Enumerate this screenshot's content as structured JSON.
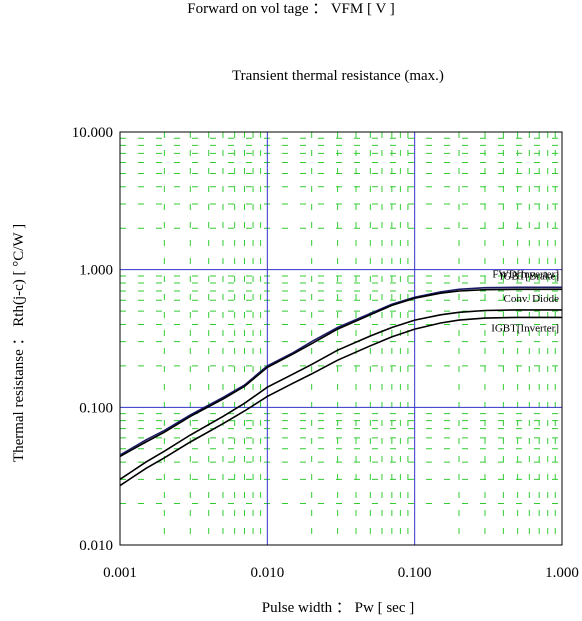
{
  "header_text": "Forward on vol tage ： VFM [ V ]",
  "chart_data": {
    "type": "line",
    "title": "Transient thermal resistance (max.)",
    "xlabel": "Pulse width ： Pw [ sec ]",
    "ylabel": "Thermal resistanse ： Rth(j-c) [ °C/W ]",
    "x_scale": "log",
    "y_scale": "log",
    "xlim": [
      0.001,
      1.0
    ],
    "ylim": [
      0.01,
      10.0
    ],
    "x_ticks": [
      0.001,
      0.01,
      0.1,
      1.0
    ],
    "x_tick_labels": [
      "0.001",
      "0.010",
      "0.100",
      "1.000"
    ],
    "y_ticks": [
      0.01,
      0.1,
      1.0,
      10.0
    ],
    "y_tick_labels": [
      "0.010",
      "0.100",
      "1.000",
      "10.000"
    ],
    "grid": true,
    "grid_color_major": "#3333cc",
    "grid_color_minor": "#33cc33",
    "series": [
      {
        "name": "IGBT[Brake]",
        "color": "#1a1a66",
        "x": [
          0.001,
          0.0015,
          0.002,
          0.003,
          0.005,
          0.007,
          0.01,
          0.015,
          0.02,
          0.03,
          0.05,
          0.07,
          0.1,
          0.15,
          0.2,
          0.3,
          0.5,
          0.7,
          1.0
        ],
        "y": [
          0.045,
          0.058,
          0.068,
          0.088,
          0.118,
          0.145,
          0.2,
          0.25,
          0.3,
          0.38,
          0.48,
          0.56,
          0.63,
          0.69,
          0.72,
          0.74,
          0.745,
          0.745,
          0.745
        ]
      },
      {
        "name": "FWD[Inverter]",
        "color": "#000000",
        "x": [
          0.001,
          0.0015,
          0.002,
          0.003,
          0.005,
          0.007,
          0.01,
          0.015,
          0.02,
          0.03,
          0.05,
          0.07,
          0.1,
          0.15,
          0.2,
          0.3,
          0.5,
          0.7,
          1.0
        ],
        "y": [
          0.044,
          0.056,
          0.066,
          0.086,
          0.115,
          0.142,
          0.195,
          0.245,
          0.29,
          0.37,
          0.47,
          0.55,
          0.62,
          0.675,
          0.7,
          0.715,
          0.72,
          0.72,
          0.72
        ]
      },
      {
        "name": "Conv. Diode",
        "color": "#000000",
        "x": [
          0.001,
          0.0015,
          0.002,
          0.003,
          0.005,
          0.007,
          0.01,
          0.015,
          0.02,
          0.03,
          0.05,
          0.07,
          0.1,
          0.15,
          0.2,
          0.3,
          0.5,
          0.7,
          1.0
        ],
        "y": [
          0.03,
          0.04,
          0.048,
          0.063,
          0.086,
          0.107,
          0.14,
          0.175,
          0.205,
          0.26,
          0.33,
          0.38,
          0.43,
          0.47,
          0.49,
          0.505,
          0.51,
          0.51,
          0.51
        ]
      },
      {
        "name": "IGBT[Inverter]",
        "color": "#000000",
        "x": [
          0.001,
          0.0015,
          0.002,
          0.003,
          0.005,
          0.007,
          0.01,
          0.015,
          0.02,
          0.03,
          0.05,
          0.07,
          0.1,
          0.15,
          0.2,
          0.3,
          0.5,
          0.7,
          1.0
        ],
        "y": [
          0.027,
          0.036,
          0.043,
          0.056,
          0.076,
          0.094,
          0.12,
          0.15,
          0.175,
          0.22,
          0.28,
          0.325,
          0.37,
          0.41,
          0.43,
          0.445,
          0.45,
          0.45,
          0.45
        ]
      }
    ]
  }
}
